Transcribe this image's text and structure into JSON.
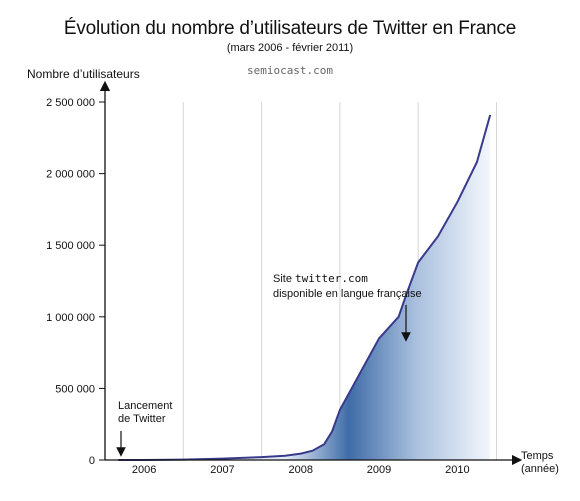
{
  "chart_data": {
    "type": "area",
    "title": "Évolution du nombre d’utilisateurs de Twitter en France",
    "subtitle": "(mars 2006 - février 2011)",
    "source": "semiocast.com",
    "ylabel": "Nombre d’utilisateurs",
    "xlabel_line1": "Temps",
    "xlabel_line2": "(année)",
    "ylim": [
      0,
      2500000
    ],
    "xlim": [
      2006.0,
      2011.25
    ],
    "y_ticks": [
      {
        "value": 0,
        "label": "0"
      },
      {
        "value": 500000,
        "label": "500 000"
      },
      {
        "value": 1000000,
        "label": "1 000 000"
      },
      {
        "value": 1500000,
        "label": "1 500 000"
      },
      {
        "value": 2000000,
        "label": "2 000 000"
      },
      {
        "value": 2500000,
        "label": "2 500 000"
      }
    ],
    "x_categories": [
      "2006",
      "2007",
      "2008",
      "2009",
      "2010"
    ],
    "grid": true,
    "series": [
      {
        "color": "#3a3a8c",
        "x": [
          2006.17,
          2006.5,
          2007.0,
          2007.5,
          2008.0,
          2008.3,
          2008.5,
          2008.65,
          2008.8,
          2008.9,
          2009.0,
          2009.25,
          2009.5,
          2009.75,
          2009.85,
          2010.0,
          2010.25,
          2010.5,
          2010.75,
          2010.92
        ],
        "y": [
          0,
          0,
          3000,
          10000,
          20000,
          30000,
          45000,
          65000,
          110000,
          200000,
          350000,
          600000,
          850000,
          1000000,
          1160000,
          1380000,
          1560000,
          1800000,
          2080000,
          2410000
        ]
      }
    ],
    "annotations": [
      {
        "line1": "Lancement",
        "line2": "de Twitter",
        "x": 2006.17
      },
      {
        "line1_prefix": "Site ",
        "line1_code": "twitter.com",
        "line2": "disponible en langue française",
        "x": 2009.7
      }
    ]
  }
}
